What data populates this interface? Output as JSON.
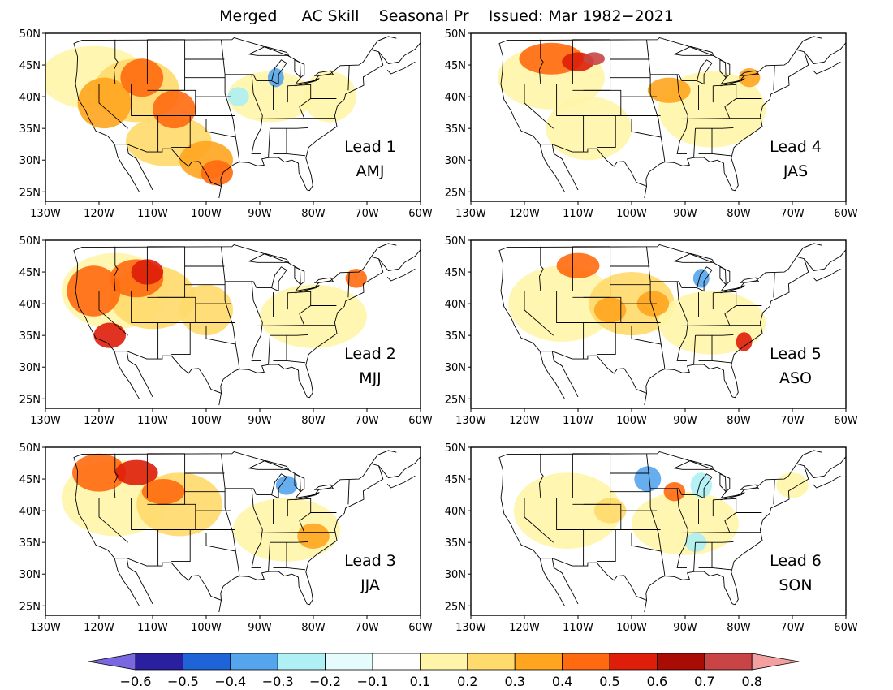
{
  "title": "Merged     AC Skill    Seasonal Pr    Issued: Mar 1982−2021",
  "lat_ticks": [
    "50N",
    "45N",
    "40N",
    "35N",
    "30N",
    "25N"
  ],
  "lon_ticks": [
    "130W",
    "120W",
    "110W",
    "100W",
    "90W",
    "80W",
    "70W",
    "60W"
  ],
  "panels": [
    {
      "lead": "Lead 1",
      "season": "AMJ"
    },
    {
      "lead": "Lead 2",
      "season": "MJJ"
    },
    {
      "lead": "Lead 3",
      "season": "JJA"
    },
    {
      "lead": "Lead 4",
      "season": "JAS"
    },
    {
      "lead": "Lead 5",
      "season": "ASO"
    },
    {
      "lead": "Lead 6",
      "season": "SON"
    }
  ],
  "colorbar": {
    "labels": [
      "−0.6",
      "−0.5",
      "−0.4",
      "−0.3",
      "−0.2",
      "−0.1",
      "0.1",
      "0.2",
      "0.3",
      "0.4",
      "0.5",
      "0.6",
      "0.7",
      "0.8"
    ],
    "colors": [
      "#7a68e0",
      "#2a1f9e",
      "#1f63d8",
      "#55a5ec",
      "#aef0f4",
      "#e6fcfc",
      "#ffffff",
      "#fff5a8",
      "#ffda6c",
      "#ffa51f",
      "#ff6a10",
      "#de1d0a",
      "#a80c04",
      "#c94545",
      "#f5a0a0"
    ]
  },
  "map_style": {
    "land": "#ffffff",
    "border": "#000000",
    "skill_colors": {
      "light": "#fff5a8",
      "medium": "#ffda6c",
      "orange": "#ffa51f",
      "dark_orange": "#ff6a10",
      "red": "#de1d0a",
      "dark_red": "#a80c04",
      "rose": "#c94545",
      "light_blue": "#aef0f4",
      "blue": "#55a5ec",
      "dark_blue": "#1f63d8"
    }
  }
}
